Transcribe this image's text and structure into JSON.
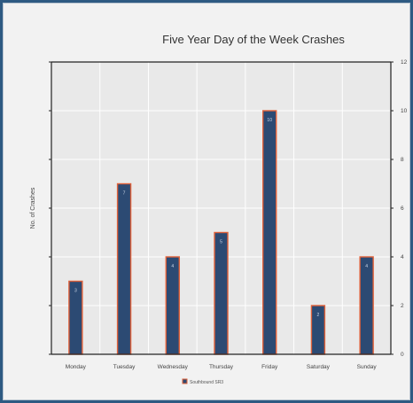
{
  "chart_data": {
    "type": "bar",
    "title": "Five Year Day of the Week Crashes",
    "ylabel": "No. of Crashes",
    "xlabel": "",
    "categories": [
      "Monday",
      "Tuesday",
      "Wednesday",
      "Thursday",
      "Friday",
      "Saturday",
      "Sunday"
    ],
    "series": [
      {
        "name": "Southbound SR3",
        "values": [
          3,
          7,
          4,
          5,
          10,
          2,
          4
        ]
      }
    ],
    "data_labels": [
      "3",
      "7",
      "4",
      "5",
      "10",
      "2",
      "4"
    ],
    "ylim": [
      0,
      12
    ],
    "yticks": [
      0,
      2,
      4,
      6,
      8,
      10,
      12
    ],
    "y_axis_side": "right",
    "grid": true,
    "legend": "bottom",
    "colors": {
      "bar_fill": "#2c4a73",
      "bar_edge": "#e0613a",
      "plot_bg": "#e9e9e9",
      "grid": "#ffffff"
    }
  }
}
